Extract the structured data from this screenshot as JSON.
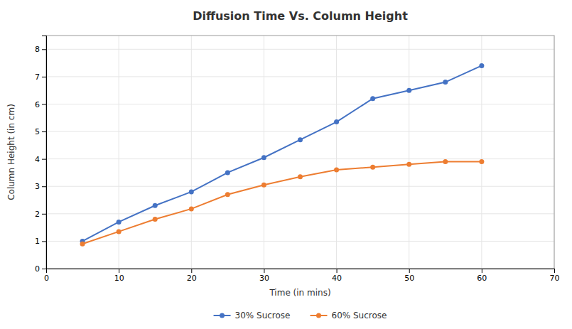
{
  "chart_data": {
    "type": "line",
    "title": "Diffusion Time Vs. Column Height",
    "xlabel": "Time (in mins)",
    "ylabel": "Column Height (in cm)",
    "x": [
      5,
      10,
      15,
      20,
      25,
      30,
      35,
      40,
      45,
      50,
      55,
      60
    ],
    "series": [
      {
        "name": "30% Sucrose",
        "color": "#4472C4",
        "values": [
          1.0,
          1.7,
          2.3,
          2.8,
          3.5,
          4.05,
          4.7,
          5.35,
          6.2,
          6.5,
          6.8,
          7.4
        ]
      },
      {
        "name": "60% Sucrose",
        "color": "#ED7D31",
        "values": [
          0.9,
          1.35,
          1.8,
          2.18,
          2.7,
          3.05,
          3.35,
          3.6,
          3.7,
          3.8,
          3.9,
          3.9
        ]
      }
    ],
    "xlim": [
      0,
      70
    ],
    "ylim": [
      0,
      8.5
    ],
    "xticks": [
      0,
      10,
      20,
      30,
      40,
      50,
      60,
      70
    ],
    "yticks": [
      0,
      1,
      2,
      3,
      4,
      5,
      6,
      7,
      8
    ],
    "grid": true,
    "legend": "bottom",
    "marker": "circle"
  }
}
